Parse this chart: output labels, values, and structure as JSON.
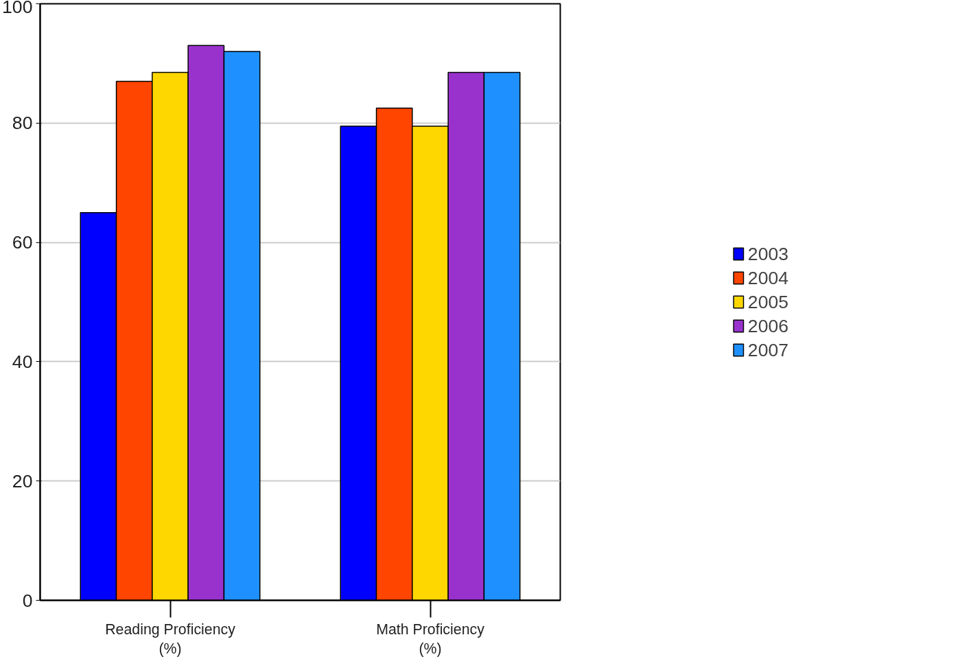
{
  "chart_data": {
    "type": "bar",
    "categories": [
      "Reading Proficiency\n(%)",
      "Math Proficiency\n(%)"
    ],
    "series": [
      {
        "name": "2003",
        "color": "#0000ff",
        "values": [
          65,
          79.5
        ]
      },
      {
        "name": "2004",
        "color": "#ff4500",
        "values": [
          87,
          82.5
        ]
      },
      {
        "name": "2005",
        "color": "#ffd700",
        "values": [
          88.5,
          79.5
        ]
      },
      {
        "name": "2006",
        "color": "#9932cc",
        "values": [
          93,
          88.5
        ]
      },
      {
        "name": "2007",
        "color": "#1e90ff",
        "values": [
          92,
          88.5
        ]
      }
    ],
    "ylim": [
      0,
      100
    ],
    "yticks": [
      0,
      20,
      40,
      60,
      80,
      100
    ],
    "grid": "y",
    "legend": "right"
  }
}
